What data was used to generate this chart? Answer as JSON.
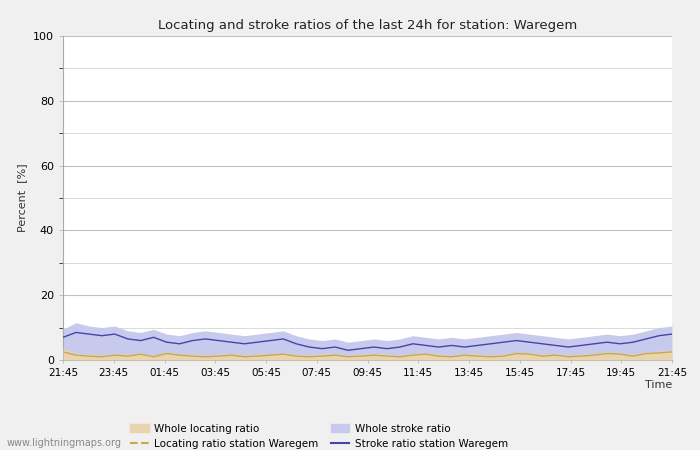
{
  "title": "Locating and stroke ratios of the last 24h for station: Waregem",
  "xlabel": "Time",
  "ylabel": "Percent  [%]",
  "ylim": [
    0,
    100
  ],
  "yticks": [
    0,
    20,
    40,
    60,
    80,
    100
  ],
  "ytick_minor": [
    10,
    30,
    50,
    70,
    90
  ],
  "x_labels": [
    "21:45",
    "23:45",
    "01:45",
    "03:45",
    "05:45",
    "07:45",
    "09:45",
    "11:45",
    "13:45",
    "15:45",
    "17:45",
    "19:45",
    "21:45"
  ],
  "background_color": "#f0f0f0",
  "plot_bg_color": "#ffffff",
  "grid_color": "#c0c0c0",
  "watermark": "www.lightningmaps.org",
  "whole_locating_color": "#e8d5b0",
  "whole_stroke_color": "#c8caed",
  "locating_line_color": "#c8a850",
  "stroke_line_color": "#4444aa",
  "whole_locating_ratio": [
    3.5,
    2.0,
    1.8,
    1.5,
    2.0,
    1.8,
    2.2,
    1.5,
    2.5,
    2.0,
    1.8,
    1.5,
    1.8,
    2.0,
    1.5,
    1.8,
    2.0,
    2.2,
    1.8,
    1.5,
    1.8,
    2.0,
    1.5,
    1.8,
    2.0,
    1.8,
    1.5,
    2.0,
    2.2,
    1.8,
    1.5,
    2.0,
    1.8,
    1.5,
    1.8,
    2.5,
    2.2,
    1.8,
    2.0,
    1.5,
    1.8,
    2.0,
    2.5,
    2.2,
    1.8,
    2.5,
    2.8,
    3.0
  ],
  "whole_stroke_ratio": [
    9.5,
    11.5,
    10.5,
    10.0,
    10.5,
    9.0,
    8.5,
    9.5,
    8.0,
    7.5,
    8.5,
    9.0,
    8.5,
    8.0,
    7.5,
    8.0,
    8.5,
    9.0,
    7.5,
    6.5,
    6.0,
    6.5,
    5.5,
    6.0,
    6.5,
    6.0,
    6.5,
    7.5,
    7.0,
    6.5,
    7.0,
    6.5,
    7.0,
    7.5,
    8.0,
    8.5,
    8.0,
    7.5,
    7.0,
    6.5,
    7.0,
    7.5,
    8.0,
    7.5,
    8.0,
    9.0,
    10.0,
    10.5
  ],
  "locating_station": [
    2.5,
    1.5,
    1.2,
    1.0,
    1.5,
    1.2,
    1.8,
    1.0,
    2.0,
    1.5,
    1.2,
    1.0,
    1.2,
    1.5,
    1.0,
    1.2,
    1.5,
    1.8,
    1.2,
    1.0,
    1.2,
    1.5,
    1.0,
    1.2,
    1.5,
    1.2,
    1.0,
    1.5,
    1.8,
    1.2,
    1.0,
    1.5,
    1.2,
    1.0,
    1.2,
    2.0,
    1.8,
    1.2,
    1.5,
    1.0,
    1.2,
    1.5,
    2.0,
    1.8,
    1.2,
    2.0,
    2.2,
    2.5
  ],
  "stroke_station": [
    7.0,
    8.5,
    8.0,
    7.5,
    8.0,
    6.5,
    6.0,
    7.0,
    5.5,
    5.0,
    6.0,
    6.5,
    6.0,
    5.5,
    5.0,
    5.5,
    6.0,
    6.5,
    5.0,
    4.0,
    3.5,
    4.0,
    3.0,
    3.5,
    4.0,
    3.5,
    4.0,
    5.0,
    4.5,
    4.0,
    4.5,
    4.0,
    4.5,
    5.0,
    5.5,
    6.0,
    5.5,
    5.0,
    4.5,
    4.0,
    4.5,
    5.0,
    5.5,
    5.0,
    5.5,
    6.5,
    7.5,
    8.0
  ]
}
